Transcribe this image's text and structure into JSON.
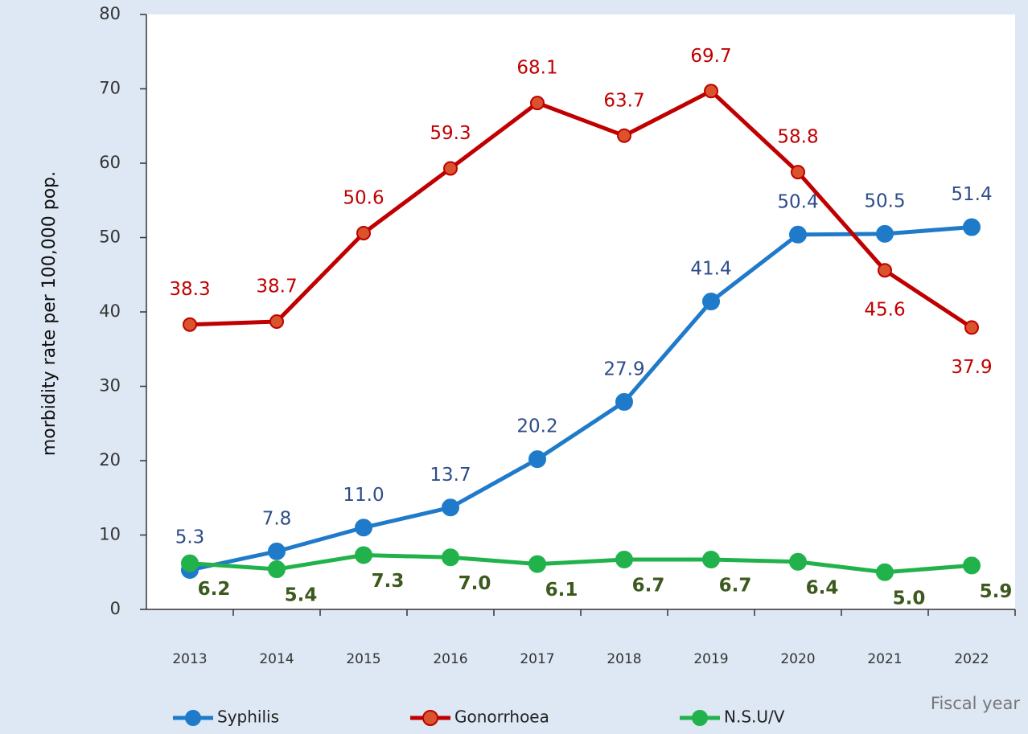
{
  "chart_data": {
    "type": "line",
    "y_label": "morbidity rate per 100,000 pop.",
    "x_label": "Fiscal year",
    "categories": [
      "2013",
      "2014",
      "2015",
      "2016",
      "2017",
      "2018",
      "2019",
      "2020",
      "2021",
      "2022"
    ],
    "ylim": [
      0,
      80
    ],
    "yticks": [
      0,
      10,
      20,
      30,
      40,
      50,
      60,
      70,
      80
    ],
    "series": [
      {
        "name": "Syphilis",
        "color": "#1f7bc9",
        "values": [
          5.3,
          7.8,
          11.0,
          13.7,
          20.2,
          27.9,
          41.4,
          50.4,
          50.5,
          51.4
        ],
        "value_labels": [
          "5.3",
          "7.8",
          "11.0",
          "13.7",
          "20.2",
          "27.9",
          "41.4",
          "50.4",
          "50.5",
          "51.4"
        ]
      },
      {
        "name": "Gonorrhoea",
        "color": "#c00000",
        "values": [
          38.3,
          38.7,
          50.6,
          59.3,
          68.1,
          63.7,
          69.7,
          58.8,
          45.6,
          37.9
        ],
        "value_labels": [
          "38.3",
          "38.7",
          "50.6",
          "59.3",
          "68.1",
          "63.7",
          "69.7",
          "58.8",
          "45.6",
          "37.9"
        ]
      },
      {
        "name": "N.S.U/V",
        "color": "#21b24b",
        "values": [
          6.2,
          5.4,
          7.3,
          7.0,
          6.1,
          6.7,
          6.7,
          6.4,
          5.0,
          5.9
        ],
        "value_labels": [
          "6.2",
          "5.4",
          "7.3",
          "7.0",
          "6.1",
          "6.7",
          "6.7",
          "6.4",
          "5.0",
          "5.9"
        ]
      }
    ]
  }
}
